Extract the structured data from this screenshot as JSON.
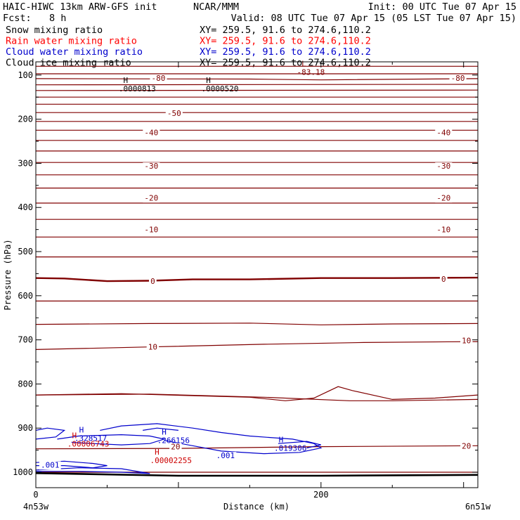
{
  "header": {
    "model": "HAIC-HIWC 13km ARW-GFS init",
    "org": "NCAR/MMM",
    "init": "Init: 00 UTC Tue 07 Apr 15",
    "fcst_label": "Fcst:",
    "fcst_value": "8 h",
    "valid": "Valid: 08 UTC Tue 07 Apr 15 (05 LST Tue 07 Apr 15)"
  },
  "legend_rows": [
    {
      "name": "Snow mixing ratio",
      "xy": "XY= 259.5, 91.6 to 274.6,110.2",
      "color": "#000000"
    },
    {
      "name": "Rain water mixing ratio",
      "xy": "XY= 259.5, 91.6 to 274.6,110.2",
      "color": "#ff0000"
    },
    {
      "name": "Cloud water mixing ratio",
      "xy": "XY= 259.5, 91.6 to 274.6,110.2",
      "color": "#0000cc"
    },
    {
      "name": "Cloud ice mixing ratio",
      "xy": "XY= 259.5, 91.6 to 274.6,110.2",
      "color": "#000000"
    }
  ],
  "colors": {
    "temp": "#800000",
    "cloud": "#0000cc",
    "rain": "#cc0000",
    "snow": "#000000",
    "ground": "#000000"
  },
  "chart_data": {
    "type": "line",
    "xlabel": "Distance (km)",
    "ylabel": "Pressure (hPa)",
    "xlim": [
      0,
      310
    ],
    "ylim": [
      1035,
      70
    ],
    "x_ticks": [
      {
        "value": 0,
        "label": "0"
      },
      {
        "value": 200,
        "label": "200"
      }
    ],
    "x_minor_step": 50,
    "y_ticks": [
      {
        "value": 100,
        "label": "100"
      },
      {
        "value": 200,
        "label": "200"
      },
      {
        "value": 300,
        "label": "300"
      },
      {
        "value": 400,
        "label": "400"
      },
      {
        "value": 500,
        "label": "500"
      },
      {
        "value": 600,
        "label": "600"
      },
      {
        "value": 700,
        "label": "700"
      },
      {
        "value": 800,
        "label": "800"
      },
      {
        "value": 900,
        "label": "900"
      },
      {
        "value": 1000,
        "label": "1000"
      }
    ],
    "y_minor_step": 50,
    "endpoints": {
      "left": "4n53w",
      "right": "6n51w"
    },
    "temperature_contours": [
      {
        "points": [
          [
            0,
            80
          ],
          [
            310,
            80
          ]
        ]
      },
      {
        "points": [
          [
            0,
            97
          ],
          [
            310,
            97
          ]
        ]
      },
      {
        "points": [
          [
            0,
            108
          ],
          [
            150,
            109
          ],
          [
            200,
            111
          ],
          [
            310,
            108
          ]
        ]
      },
      {
        "points": [
          [
            0,
            122
          ],
          [
            310,
            121
          ]
        ]
      },
      {
        "points": [
          [
            0,
            135
          ],
          [
            310,
            134
          ]
        ]
      },
      {
        "points": [
          [
            0,
            150
          ],
          [
            310,
            150
          ]
        ]
      },
      {
        "points": [
          [
            0,
            166
          ],
          [
            310,
            166
          ]
        ]
      },
      {
        "points": [
          [
            0,
            185
          ],
          [
            310,
            185
          ]
        ]
      },
      {
        "points": [
          [
            0,
            205
          ],
          [
            310,
            205
          ]
        ]
      },
      {
        "points": [
          [
            0,
            225
          ],
          [
            310,
            225
          ]
        ]
      },
      {
        "points": [
          [
            0,
            248
          ],
          [
            310,
            248
          ]
        ]
      },
      {
        "points": [
          [
            0,
            272
          ],
          [
            310,
            272
          ]
        ]
      },
      {
        "points": [
          [
            0,
            298
          ],
          [
            310,
            298
          ]
        ]
      },
      {
        "points": [
          [
            0,
            326
          ],
          [
            310,
            326
          ]
        ]
      },
      {
        "points": [
          [
            0,
            356
          ],
          [
            310,
            356
          ]
        ]
      },
      {
        "points": [
          [
            0,
            390
          ],
          [
            310,
            390
          ]
        ]
      },
      {
        "points": [
          [
            0,
            427
          ],
          [
            310,
            427
          ]
        ]
      },
      {
        "points": [
          [
            0,
            467
          ],
          [
            310,
            467
          ]
        ]
      },
      {
        "points": [
          [
            0,
            512
          ],
          [
            310,
            512
          ]
        ]
      },
      {
        "points": [
          [
            0,
            560
          ],
          [
            20,
            561
          ],
          [
            50,
            567
          ],
          [
            80,
            566
          ],
          [
            110,
            563
          ],
          [
            150,
            563
          ],
          [
            200,
            560
          ],
          [
            250,
            560
          ],
          [
            310,
            559
          ]
        ],
        "bold": true
      },
      {
        "points": [
          [
            0,
            612
          ],
          [
            310,
            612
          ]
        ]
      },
      {
        "points": [
          [
            0,
            665
          ],
          [
            80,
            663
          ],
          [
            150,
            662
          ],
          [
            200,
            666
          ],
          [
            250,
            664
          ],
          [
            310,
            663
          ]
        ]
      },
      {
        "points": [
          [
            0,
            722
          ],
          [
            80,
            716
          ],
          [
            160,
            710
          ],
          [
            230,
            706
          ],
          [
            310,
            704
          ]
        ]
      },
      {
        "points": [
          [
            0,
            825
          ],
          [
            80,
            823
          ],
          [
            160,
            830
          ],
          [
            220,
            838
          ],
          [
            250,
            838
          ],
          [
            310,
            835
          ]
        ]
      },
      {
        "points": [
          [
            0,
            825
          ],
          [
            60,
            822
          ],
          [
            150,
            830
          ],
          [
            175,
            838
          ],
          [
            195,
            832
          ],
          [
            212,
            806
          ],
          [
            222,
            815
          ],
          [
            250,
            835
          ],
          [
            280,
            832
          ],
          [
            310,
            825
          ]
        ]
      },
      {
        "points": [
          [
            0,
            947
          ],
          [
            100,
            946
          ],
          [
            200,
            942
          ],
          [
            310,
            940
          ]
        ]
      },
      {
        "points": [
          [
            0,
            1000
          ],
          [
            200,
            1000
          ],
          [
            310,
            1000
          ]
        ]
      }
    ],
    "temperature_labels": [
      {
        "x": 86,
        "p": 107,
        "text": "-80"
      },
      {
        "x": 296,
        "p": 107,
        "text": "-80"
      },
      {
        "x": 97,
        "p": 186,
        "text": "-50"
      },
      {
        "x": 81,
        "p": 230,
        "text": "-40"
      },
      {
        "x": 286,
        "p": 230,
        "text": "-40"
      },
      {
        "x": 81,
        "p": 306,
        "text": "-30"
      },
      {
        "x": 286,
        "p": 306,
        "text": "-30"
      },
      {
        "x": 81,
        "p": 378,
        "text": "-20"
      },
      {
        "x": 286,
        "p": 378,
        "text": "-20"
      },
      {
        "x": 81,
        "p": 450,
        "text": "-10"
      },
      {
        "x": 286,
        "p": 450,
        "text": "-10"
      },
      {
        "x": 82,
        "p": 567,
        "text": "0"
      },
      {
        "x": 286,
        "p": 562,
        "text": "0"
      },
      {
        "x": 82,
        "p": 716,
        "text": "10"
      },
      {
        "x": 302,
        "p": 701,
        "text": "10"
      },
      {
        "x": 98,
        "p": 942,
        "text": "20"
      },
      {
        "x": 302,
        "p": 940,
        "text": "20"
      }
    ],
    "temp_extrema": [
      {
        "x": 188,
        "p": 80,
        "letter": "L",
        "value": "-83.18"
      }
    ],
    "cloud_water_contours": [
      {
        "points": [
          [
            0,
            905
          ],
          [
            8,
            900
          ],
          [
            20,
            905
          ],
          [
            14,
            920
          ],
          [
            0,
            925
          ]
        ]
      },
      {
        "points": [
          [
            15,
            925
          ],
          [
            30,
            918
          ],
          [
            60,
            915
          ],
          [
            80,
            918
          ],
          [
            90,
            925
          ],
          [
            80,
            935
          ],
          [
            60,
            938
          ],
          [
            40,
            935
          ],
          [
            25,
            932
          ]
        ]
      },
      {
        "points": [
          [
            45,
            905
          ],
          [
            60,
            895
          ],
          [
            85,
            890
          ],
          [
            110,
            900
          ],
          [
            130,
            910
          ],
          [
            150,
            918
          ],
          [
            180,
            925
          ],
          [
            195,
            935
          ],
          [
            200,
            945
          ],
          [
            185,
            955
          ],
          [
            160,
            958
          ],
          [
            130,
            952
          ],
          [
            110,
            940
          ],
          [
            90,
            928
          ]
        ]
      },
      {
        "points": [
          [
            75,
            905
          ],
          [
            85,
            900
          ],
          [
            100,
            905
          ]
        ]
      },
      {
        "points": [
          [
            170,
            935
          ],
          [
            190,
            930
          ],
          [
            200,
            938
          ],
          [
            190,
            945
          ]
        ]
      },
      {
        "points": [
          [
            0,
            978
          ],
          [
            20,
            975
          ],
          [
            40,
            980
          ],
          [
            50,
            985
          ],
          [
            40,
            990
          ],
          [
            20,
            985
          ],
          [
            0,
            985
          ]
        ]
      },
      {
        "points": [
          [
            0,
            995
          ],
          [
            30,
            990
          ],
          [
            60,
            992
          ],
          [
            80,
            1003
          ],
          [
            60,
            1000
          ],
          [
            30,
            998
          ],
          [
            0,
            998
          ]
        ]
      }
    ],
    "cloud_water_extrema": [
      {
        "x": 32,
        "p": 910,
        "letter": "H",
        "value": ".328517"
      },
      {
        "x": 90,
        "p": 915,
        "letter": "H",
        "value": ".266156"
      },
      {
        "x": 172,
        "p": 932,
        "letter": "H",
        "value": ".019306"
      }
    ],
    "cloud_water_labels": [
      {
        "x": 133,
        "p": 962,
        "text": ".001"
      },
      {
        "x": 10,
        "p": 983,
        "text": ".001"
      }
    ],
    "rain_extrema": [
      {
        "x": 27,
        "p": 923,
        "letter": "H",
        "value": ".00006743"
      },
      {
        "x": 85,
        "p": 960,
        "letter": "H",
        "value": ".00002255"
      }
    ],
    "snow_extrema": [
      {
        "x": 63,
        "p": 118,
        "letter": "H",
        "value": ".0000813"
      },
      {
        "x": 121,
        "p": 118,
        "letter": "H",
        "value": ".0000520"
      }
    ],
    "ground_line": {
      "points": [
        [
          0,
          1002
        ],
        [
          100,
          1008
        ],
        [
          200,
          1008
        ],
        [
          310,
          1006
        ]
      ]
    }
  }
}
